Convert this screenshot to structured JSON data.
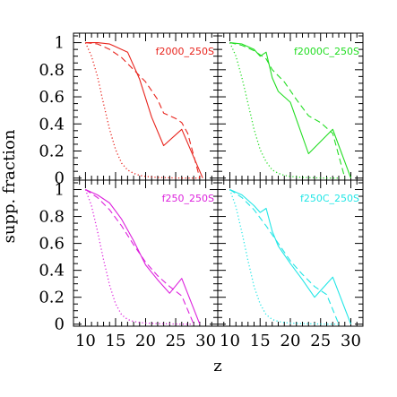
{
  "chart_data": [
    {
      "type": "line",
      "panel": "top-left",
      "label": "f2000_250S",
      "color": "#e8231c",
      "xlabel": "z",
      "ylabel": "supp. fraction",
      "xlim": [
        8,
        32
      ],
      "ylim": [
        0,
        1.05
      ],
      "series": [
        {
          "style": "solid",
          "x": [
            10,
            12,
            14,
            15,
            17,
            19,
            21,
            23,
            26,
            29.5
          ],
          "y": [
            1.0,
            1.0,
            0.99,
            0.97,
            0.93,
            0.73,
            0.45,
            0.24,
            0.36,
            0.0
          ]
        },
        {
          "style": "dashed",
          "x": [
            10,
            12,
            14,
            16,
            18,
            20,
            22,
            23,
            25,
            26,
            27,
            29
          ],
          "y": [
            1.0,
            0.99,
            0.95,
            0.89,
            0.8,
            0.71,
            0.58,
            0.48,
            0.44,
            0.41,
            0.33,
            0.0
          ]
        },
        {
          "style": "dotted",
          "x": [
            10,
            11,
            12,
            13,
            14,
            15,
            16,
            17,
            18,
            19,
            20,
            22,
            24,
            26,
            28,
            29
          ],
          "y": [
            1.0,
            0.9,
            0.75,
            0.55,
            0.36,
            0.21,
            0.11,
            0.06,
            0.035,
            0.02,
            0.012,
            0.005,
            0.002,
            0.0,
            0.0,
            0.0
          ]
        }
      ]
    },
    {
      "type": "line",
      "panel": "top-right",
      "label": "f2000C_250S",
      "color": "#22dd22",
      "xlim": [
        8,
        32
      ],
      "ylim": [
        0,
        1.05
      ],
      "series": [
        {
          "style": "solid",
          "x": [
            10,
            12,
            14,
            15,
            16,
            17,
            18,
            20,
            23,
            27,
            30
          ],
          "y": [
            1.0,
            0.99,
            0.95,
            0.9,
            0.93,
            0.74,
            0.64,
            0.56,
            0.18,
            0.36,
            0.0
          ]
        },
        {
          "style": "dashed",
          "x": [
            10,
            12,
            14,
            16,
            17,
            19,
            21,
            23,
            25,
            27,
            29
          ],
          "y": [
            1.0,
            0.98,
            0.94,
            0.88,
            0.8,
            0.71,
            0.58,
            0.46,
            0.41,
            0.33,
            0.0
          ]
        },
        {
          "style": "dotted",
          "x": [
            10,
            11,
            12,
            13,
            14,
            15,
            16,
            17,
            18,
            19,
            20,
            22,
            24,
            26,
            28
          ],
          "y": [
            1.0,
            0.9,
            0.74,
            0.55,
            0.36,
            0.21,
            0.12,
            0.06,
            0.035,
            0.02,
            0.012,
            0.005,
            0.002,
            0.0,
            0.0
          ]
        }
      ]
    },
    {
      "type": "line",
      "panel": "bottom-left",
      "label": "f250_250S",
      "color": "#dd22dd",
      "xlim": [
        8,
        32
      ],
      "ylim": [
        0,
        1.05
      ],
      "series": [
        {
          "style": "solid",
          "x": [
            10,
            12,
            14,
            16,
            18,
            20,
            22,
            24,
            26,
            29
          ],
          "y": [
            1.0,
            0.96,
            0.9,
            0.78,
            0.62,
            0.44,
            0.33,
            0.23,
            0.34,
            0.0
          ]
        },
        {
          "style": "dashed",
          "x": [
            10,
            12,
            14,
            16,
            18,
            20,
            22,
            24,
            26,
            28
          ],
          "y": [
            1.0,
            0.94,
            0.85,
            0.73,
            0.59,
            0.46,
            0.36,
            0.28,
            0.21,
            0.0
          ]
        },
        {
          "style": "dotted",
          "x": [
            10,
            11,
            12,
            13,
            14,
            15,
            16,
            17,
            18,
            19,
            20,
            22,
            24,
            26,
            28
          ],
          "y": [
            1.0,
            0.88,
            0.69,
            0.48,
            0.29,
            0.15,
            0.07,
            0.035,
            0.02,
            0.012,
            0.008,
            0.004,
            0.002,
            0.0,
            0.0
          ]
        }
      ]
    },
    {
      "type": "line",
      "panel": "bottom-right",
      "label": "f250C_250S",
      "color": "#22e6e6",
      "xlim": [
        8,
        32
      ],
      "ylim": [
        0,
        1.05
      ],
      "series": [
        {
          "style": "solid",
          "x": [
            10,
            12,
            14,
            15,
            16,
            17,
            18,
            20,
            22,
            24,
            27,
            30
          ],
          "y": [
            1.0,
            0.96,
            0.88,
            0.83,
            0.86,
            0.69,
            0.58,
            0.45,
            0.33,
            0.2,
            0.35,
            0.0
          ]
        },
        {
          "style": "dashed",
          "x": [
            10,
            12,
            14,
            16,
            18,
            20,
            22,
            24,
            26,
            28
          ],
          "y": [
            1.0,
            0.94,
            0.85,
            0.73,
            0.6,
            0.47,
            0.37,
            0.28,
            0.22,
            0.0
          ]
        },
        {
          "style": "dotted",
          "x": [
            10,
            11,
            12,
            13,
            14,
            15,
            16,
            17,
            18,
            19,
            20,
            22,
            24,
            26,
            28
          ],
          "y": [
            1.0,
            0.87,
            0.68,
            0.47,
            0.28,
            0.15,
            0.07,
            0.035,
            0.02,
            0.012,
            0.008,
            0.004,
            0.002,
            0.0,
            0.0
          ]
        }
      ]
    }
  ],
  "axes": {
    "xlabel": "z",
    "ylabel": "supp. fraction",
    "y_ticks": [
      "0",
      "0.2",
      "0.4",
      "0.6",
      "0.8",
      "1"
    ],
    "y_tick_values": [
      0,
      0.2,
      0.4,
      0.6,
      0.8,
      1.0
    ],
    "x_ticks": [
      "10",
      "15",
      "20",
      "25",
      "30"
    ],
    "x_tick_values": [
      10,
      15,
      20,
      25,
      30
    ]
  }
}
